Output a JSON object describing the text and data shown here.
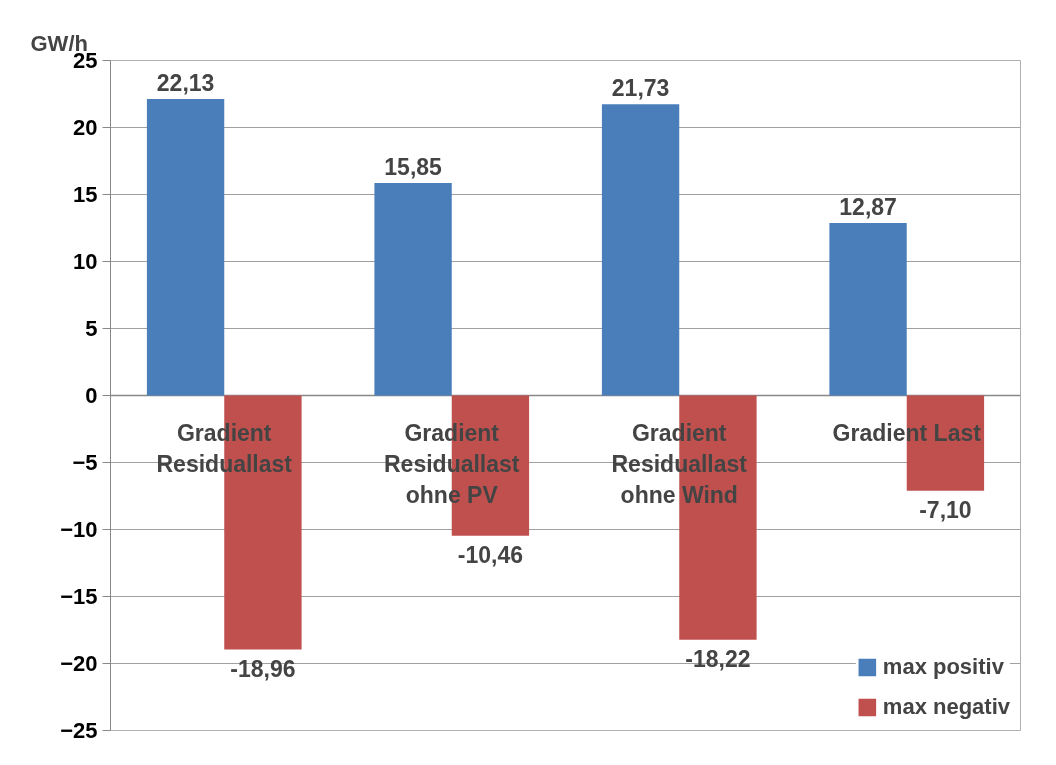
{
  "chart_data": {
    "type": "bar",
    "ylabel": "GW/h",
    "categories": [
      "Gradient\nResiduallast",
      "Gradient\nResiduallast\nohne PV",
      "Gradient\nResiduallast\nohne Wind",
      "Gradient Last"
    ],
    "series": [
      {
        "name": "max positiv",
        "color": "#4a7ebb",
        "values": [
          22.13,
          15.85,
          21.73,
          12.87
        ],
        "value_labels": [
          "22,13",
          "15,85",
          "21,73",
          "12,87"
        ]
      },
      {
        "name": "max negativ",
        "color": "#c0504d",
        "values": [
          -18.96,
          -10.46,
          -18.22,
          -7.1
        ],
        "value_labels": [
          "-18,96",
          "-10,46",
          "-18,22",
          "-7,10"
        ]
      }
    ],
    "ylim": [
      -25,
      25
    ],
    "yticks": [
      -25,
      -20,
      -15,
      -10,
      -5,
      0,
      5,
      10,
      15,
      20,
      25
    ],
    "grid": "y",
    "legend": "bottom right"
  }
}
